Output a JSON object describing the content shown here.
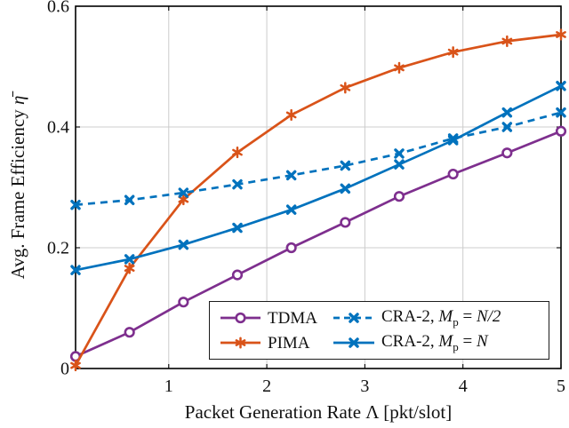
{
  "figure": {
    "background": "#ffffff"
  },
  "display": {
    "ylabel_prefix": "Avg. Frame Efficiency ",
    "ylabel_math": "η̄",
    "xlabel_text": "Packet Generation Rate Λ [pkt/slot]"
  },
  "legend": {
    "position": "inside bottom-right",
    "items": [
      {
        "label": "TDMA",
        "series": 0
      },
      {
        "label": "PIMA",
        "series": 1
      },
      {
        "prefix": "CRA-2, ",
        "var": "M",
        "sub": "p",
        "eq": " = ",
        "val": "N/2",
        "series": 2
      },
      {
        "prefix": "CRA-2, ",
        "var": "M",
        "sub": "p",
        "eq": " = ",
        "val": "N",
        "series": 3
      }
    ]
  },
  "chart_data": {
    "type": "line",
    "title": "",
    "xlabel": "Packet Generation Rate Λ [pkt/slot]",
    "ylabel": "Avg. Frame Efficiency η̄",
    "xlim": [
      0.05,
      5
    ],
    "ylim": [
      0,
      0.6
    ],
    "xticks": [
      1,
      2,
      3,
      4,
      5
    ],
    "xtick_labels": [
      "1",
      "2",
      "3",
      "4",
      "5"
    ],
    "yticks": [
      0,
      0.2,
      0.4,
      0.6
    ],
    "ytick_labels": [
      "0",
      "0.2",
      "0.4",
      "0.6"
    ],
    "grid": true,
    "legend_position": "inside bottom-right",
    "x": [
      0.05,
      0.6,
      1.15,
      1.7,
      2.25,
      2.8,
      3.35,
      3.9,
      4.45,
      5.0
    ],
    "series": [
      {
        "name": "TDMA",
        "color": "#7E2F8E",
        "style": "solid",
        "marker": "circle",
        "values": [
          0.02,
          0.06,
          0.11,
          0.155,
          0.2,
          0.242,
          0.285,
          0.322,
          0.357,
          0.393
        ]
      },
      {
        "name": "PIMA",
        "color": "#D95319",
        "style": "solid",
        "marker": "asterisk",
        "values": [
          0.005,
          0.166,
          0.28,
          0.358,
          0.42,
          0.465,
          0.498,
          0.524,
          0.542,
          0.553
        ]
      },
      {
        "name": "CRA-2, Mₚ = N/2",
        "color": "#0072BD",
        "style": "dashed",
        "marker": "x",
        "values": [
          0.271,
          0.279,
          0.291,
          0.305,
          0.32,
          0.336,
          0.356,
          0.381,
          0.4,
          0.424
        ]
      },
      {
        "name": "CRA-2, Mₚ = N",
        "color": "#0072BD",
        "style": "solid",
        "marker": "x",
        "values": [
          0.163,
          0.181,
          0.205,
          0.233,
          0.263,
          0.298,
          0.338,
          0.378,
          0.424,
          0.468
        ]
      }
    ]
  }
}
